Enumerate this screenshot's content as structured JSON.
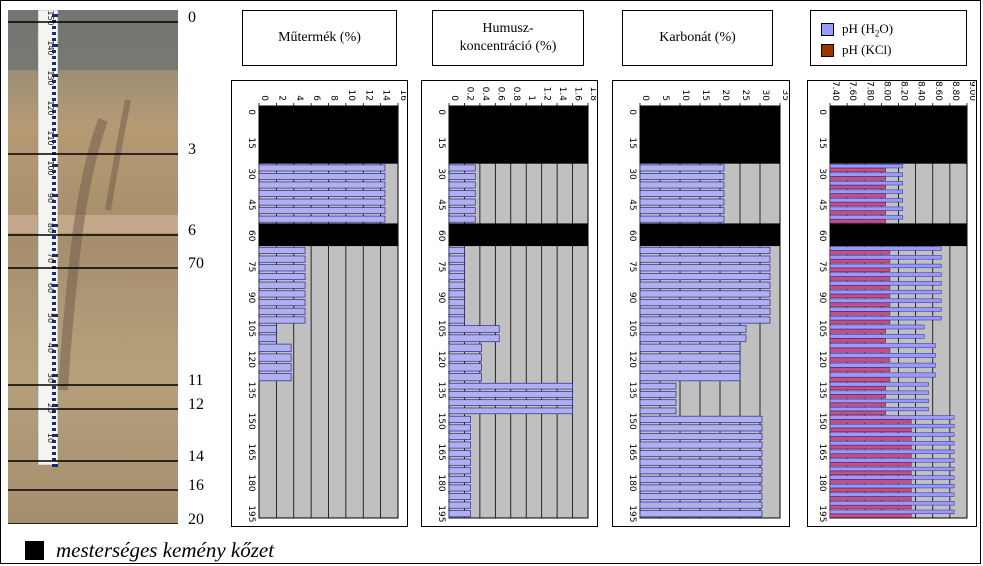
{
  "photo": {
    "depth_labels": [
      "0",
      "3",
      "6",
      "70",
      "11",
      "12",
      "14",
      "16",
      "20"
    ],
    "ruler_labels": [
      "150",
      "140",
      "130",
      "120",
      "110",
      "100",
      "90",
      "80",
      "70",
      "60",
      "50",
      "40",
      "30",
      "20",
      "10"
    ]
  },
  "legend": {
    "items": [
      {
        "label_main": "pH (H",
        "label_sub": "2",
        "label_end": "O)",
        "color": "#9999ff"
      },
      {
        "label_main": "pH (KCl)",
        "label_sub": "",
        "label_end": "",
        "color": "#993300"
      }
    ]
  },
  "footnote": {
    "text": "mesterséges kemény kőzet"
  },
  "chart_data": [
    {
      "type": "bar",
      "title": "Műtermék (%)",
      "depth_ticks": [
        0,
        15,
        30,
        45,
        60,
        75,
        90,
        105,
        120,
        135,
        150,
        165,
        180,
        195
      ],
      "xlim": [
        0,
        16
      ],
      "x_ticks": [
        "0",
        "2",
        "4",
        "6",
        "8",
        "10",
        "12",
        "14",
        "16"
      ],
      "hard_rock_layers": [
        [
          0,
          28
        ],
        [
          57,
          68
        ]
      ],
      "bars": [
        {
          "depth_range": [
            28,
            57
          ],
          "value": 14.5,
          "count": 7
        },
        {
          "depth_range": [
            68,
            106
          ],
          "value": 5.3,
          "count": 9
        },
        {
          "depth_range": [
            106,
            115
          ],
          "value": 2.0,
          "count": 2
        },
        {
          "depth_range": [
            115,
            134
          ],
          "value": 3.7,
          "count": 4
        }
      ]
    },
    {
      "type": "bar",
      "title": "Humusz-koncentráció (%)",
      "depth_ticks": [
        0,
        15,
        30,
        45,
        60,
        75,
        90,
        105,
        120,
        135,
        150,
        165,
        180,
        195
      ],
      "xlim": [
        0,
        1.8
      ],
      "x_ticks": [
        "0",
        "0.2",
        "0.4",
        "0.6",
        "0.8",
        "1",
        "1.2",
        "1.4",
        "1.6",
        "1.8"
      ],
      "hard_rock_layers": [
        [
          0,
          28
        ],
        [
          57,
          68
        ]
      ],
      "bars": [
        {
          "depth_range": [
            28,
            57
          ],
          "value": 0.34,
          "count": 7
        },
        {
          "depth_range": [
            68,
            106
          ],
          "value": 0.2,
          "count": 9
        },
        {
          "depth_range": [
            106,
            115
          ],
          "value": 0.65,
          "count": 2
        },
        {
          "depth_range": [
            115,
            134
          ],
          "value": 0.42,
          "count": 4
        },
        {
          "depth_range": [
            134,
            150
          ],
          "value": 1.6,
          "count": 4
        },
        {
          "depth_range": [
            150,
            200
          ],
          "value": 0.28,
          "count": 12
        }
      ]
    },
    {
      "type": "bar",
      "title": "Karbonát (%)",
      "depth_ticks": [
        0,
        15,
        30,
        45,
        60,
        75,
        90,
        105,
        120,
        135,
        150,
        165,
        180,
        195
      ],
      "xlim": [
        0,
        35
      ],
      "x_ticks": [
        "0",
        "5",
        "10",
        "15",
        "20",
        "25",
        "30",
        "35"
      ],
      "hard_rock_layers": [
        [
          0,
          28
        ],
        [
          57,
          68
        ]
      ],
      "bars": [
        {
          "depth_range": [
            28,
            57
          ],
          "value": 21,
          "count": 7
        },
        {
          "depth_range": [
            68,
            106
          ],
          "value": 32.5,
          "count": 9
        },
        {
          "depth_range": [
            106,
            115
          ],
          "value": 26.5,
          "count": 2
        },
        {
          "depth_range": [
            115,
            134
          ],
          "value": 25,
          "count": 4
        },
        {
          "depth_range": [
            134,
            150
          ],
          "value": 9,
          "count": 4
        },
        {
          "depth_range": [
            150,
            200
          ],
          "value": 30.5,
          "count": 12
        }
      ]
    },
    {
      "type": "bar",
      "title": "",
      "depth_ticks": [
        0,
        15,
        30,
        45,
        60,
        75,
        90,
        105,
        120,
        135,
        150,
        165,
        180,
        195
      ],
      "xlim": [
        7.4,
        9.0
      ],
      "x_ticks": [
        "7.40",
        "7.60",
        "7.80",
        "8.00",
        "8.20",
        "8.40",
        "8.60",
        "8.80",
        "9.00"
      ],
      "hard_rock_layers": [
        [
          0,
          28
        ],
        [
          57,
          68
        ]
      ],
      "series": [
        {
          "name": "pH (H2O)",
          "color": "#9999ff",
          "segments": [
            {
              "depth_range": [
                28,
                57
              ],
              "value": 8.25,
              "count": 7
            },
            {
              "depth_range": [
                68,
                106
              ],
              "value": 8.7,
              "count": 9
            },
            {
              "depth_range": [
                106,
                115
              ],
              "value": 8.5,
              "count": 2
            },
            {
              "depth_range": [
                115,
                134
              ],
              "value": 8.63,
              "count": 4
            },
            {
              "depth_range": [
                134,
                150
              ],
              "value": 8.55,
              "count": 4
            },
            {
              "depth_range": [
                150,
                200
              ],
              "value": 8.85,
              "count": 12
            }
          ]
        },
        {
          "name": "pH (KCl)",
          "color": "#993300",
          "segments": [
            {
              "depth_range": [
                28,
                57
              ],
              "value": 8.05,
              "count": 7
            },
            {
              "depth_range": [
                68,
                106
              ],
              "value": 8.1,
              "count": 9
            },
            {
              "depth_range": [
                106,
                115
              ],
              "value": 8.05,
              "count": 2
            },
            {
              "depth_range": [
                115,
                134
              ],
              "value": 8.1,
              "count": 4
            },
            {
              "depth_range": [
                134,
                150
              ],
              "value": 8.05,
              "count": 4
            },
            {
              "depth_range": [
                150,
                200
              ],
              "value": 8.35,
              "count": 12
            }
          ]
        }
      ]
    }
  ]
}
